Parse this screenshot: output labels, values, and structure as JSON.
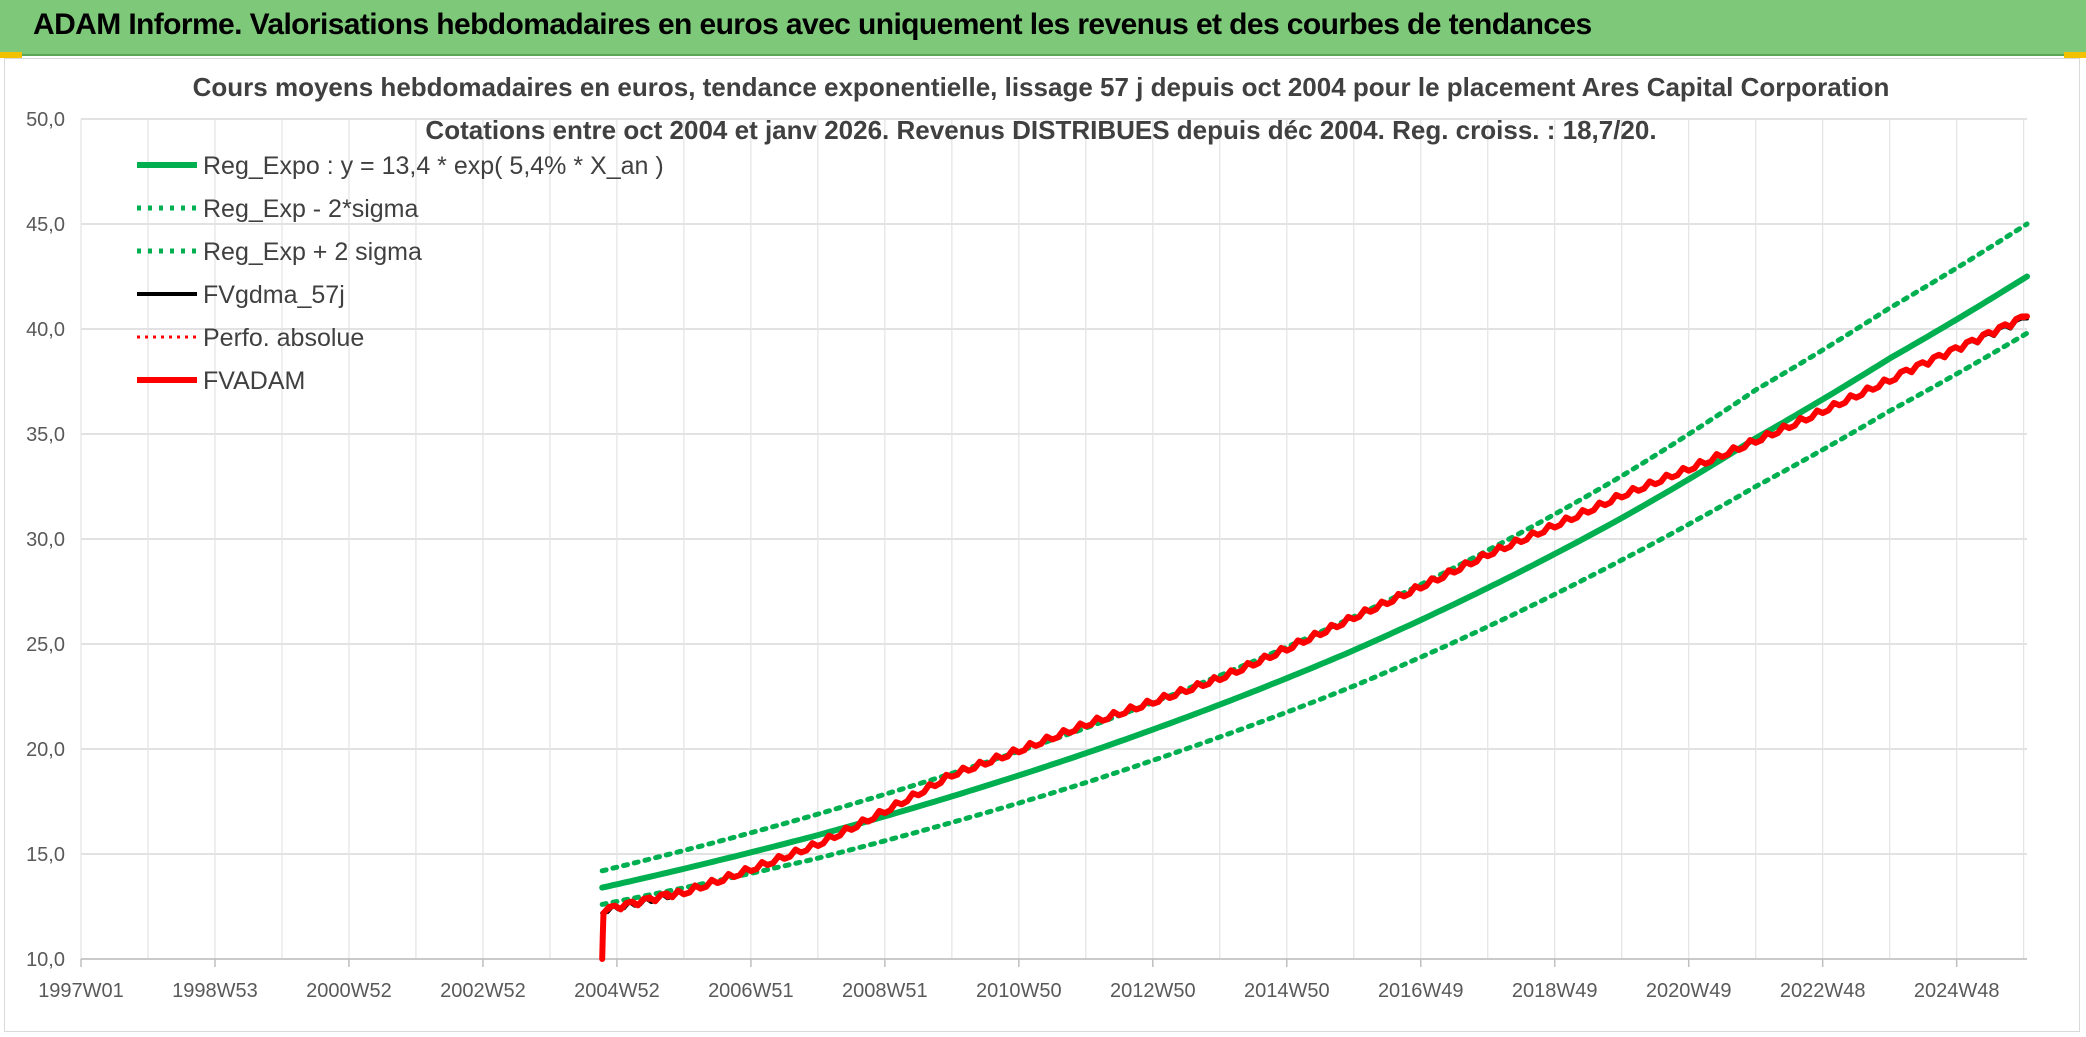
{
  "header": {
    "title": "ADAM Informe. Valorisations hebdomadaires en euros avec uniquement les revenus et des courbes de tendances"
  },
  "colors": {
    "header_bg": "#7ec87a",
    "reg_green": "#00b050",
    "fv_red": "#ff0000",
    "fv_black": "#000000",
    "corner_accent": "#f2c200"
  },
  "chart_data": {
    "type": "line",
    "title": "Cours moyens hebdomadaires en euros, tendance exponentielle, lissage 57 j depuis oct 2004 pour le placement Ares Capital Corporation",
    "subtitle": "Cotations entre oct 2004 et janv 2026. Revenus DISTRIBUES depuis déc 2004. Reg. croiss. : 18,7/20.",
    "xlabel": "",
    "ylabel": "",
    "ylim": [
      10,
      50
    ],
    "xlim": [
      1997.0,
      2026.05
    ],
    "y_ticks": [
      "10,0",
      "15,0",
      "20,0",
      "25,0",
      "30,0",
      "35,0",
      "40,0",
      "45,0",
      "50,0"
    ],
    "x_tick_labels": [
      "1997W01",
      "1998W53",
      "2000W52",
      "2002W52",
      "2004W52",
      "2006W51",
      "2008W51",
      "2010W50",
      "2012W50",
      "2014W50",
      "2016W49",
      "2018W49",
      "2020W49",
      "2022W48",
      "2024W48"
    ],
    "x_tick_values": [
      1997.0,
      1999.0,
      2001.0,
      2003.0,
      2005.0,
      2007.0,
      2009.0,
      2011.0,
      2013.0,
      2015.0,
      2017.0,
      2019.0,
      2021.0,
      2023.0,
      2025.0
    ],
    "grid": true,
    "legend_position": "top-left",
    "series": [
      {
        "name": "Reg_Expo : y = 13,4 * exp( 5,4% *  X_an )",
        "style": "solid-green",
        "x": [
          2004.78,
          2008,
          2012,
          2016,
          2020,
          2022,
          2024,
          2026.05
        ],
        "y": [
          13.4,
          15.9,
          19.8,
          24.7,
          31.0,
          34.8,
          38.6,
          42.5
        ]
      },
      {
        "name": "Reg_Exp - 2*sigma",
        "style": "dotted-green",
        "x": [
          2004.78,
          2008,
          2012,
          2016,
          2020,
          2022,
          2024,
          2026.05
        ],
        "y": [
          12.6,
          14.8,
          18.4,
          23.0,
          29.0,
          32.5,
          36.1,
          39.8
        ]
      },
      {
        "name": "Reg_Exp + 2 sigma",
        "style": "dotted-green",
        "x": [
          2004.78,
          2008,
          2012,
          2016,
          2020,
          2022,
          2024,
          2026.05
        ],
        "y": [
          14.2,
          16.9,
          21.0,
          26.3,
          33.0,
          37.1,
          41.0,
          45.0
        ]
      },
      {
        "name": "FVgdma_57j",
        "style": "solid-black",
        "x": [
          2004.78,
          2006,
          2008,
          2010,
          2012,
          2014,
          2016,
          2018,
          2020,
          2022,
          2024,
          2026.05
        ],
        "y": [
          12.3,
          13.2,
          15.5,
          18.8,
          21.2,
          23.4,
          26.3,
          29.3,
          32.1,
          34.7,
          37.6,
          40.5
        ]
      },
      {
        "name": "Perfo. absolue",
        "style": "dotted-red",
        "x": [
          2004.78,
          2006,
          2008,
          2010,
          2012,
          2014,
          2016,
          2018,
          2020,
          2022,
          2024,
          2026.05
        ],
        "y": [
          12.3,
          13.2,
          15.5,
          18.8,
          21.2,
          23.4,
          26.3,
          29.3,
          32.1,
          34.7,
          37.6,
          40.5
        ]
      },
      {
        "name": "FVADAM",
        "style": "solid-red",
        "x": [
          2004.78,
          2004.8,
          2006,
          2008,
          2010,
          2012,
          2014,
          2016,
          2018,
          2020,
          2022,
          2024,
          2026.05
        ],
        "y": [
          10.0,
          12.3,
          13.2,
          15.5,
          18.8,
          21.2,
          23.4,
          26.3,
          29.3,
          32.1,
          34.7,
          37.6,
          40.6
        ]
      }
    ]
  }
}
